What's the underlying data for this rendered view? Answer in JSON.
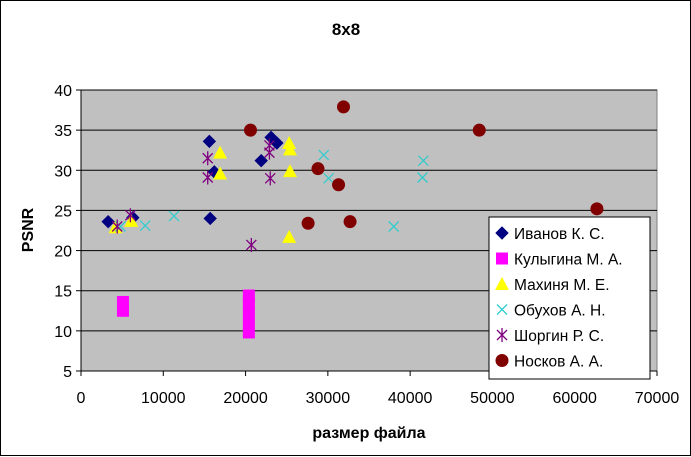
{
  "chart_data": {
    "type": "scatter",
    "title": "8x8",
    "xlabel": "размер файла",
    "ylabel": "PSNR",
    "xlim": [
      0,
      70000
    ],
    "ylim": [
      5,
      40
    ],
    "x_ticks": [
      0,
      10000,
      20000,
      30000,
      40000,
      50000,
      60000,
      70000
    ],
    "y_ticks": [
      5,
      10,
      15,
      20,
      25,
      30,
      35,
      40
    ],
    "x_tick_labels": [
      "0",
      "10000",
      "20000",
      "30000",
      "40000",
      "50000",
      "60000",
      "70000"
    ],
    "y_tick_labels": [
      "5",
      "10",
      "15",
      "20",
      "25",
      "30",
      "35",
      "40"
    ],
    "grid": "horizontal",
    "plot_background": "#c0c0c0",
    "legend_position": "right",
    "series": [
      {
        "name": "Иванов К. С.",
        "marker": "diamond",
        "color": "#000080",
        "points": [
          [
            3300,
            23.6
          ],
          [
            6300,
            24.1
          ],
          [
            15600,
            33.6
          ],
          [
            15700,
            24.0
          ],
          [
            16200,
            29.8
          ],
          [
            21900,
            31.2
          ],
          [
            23100,
            34.1
          ],
          [
            23800,
            33.4
          ]
        ]
      },
      {
        "name": "Кулыгина М. А.",
        "marker": "square",
        "color": "#ff00ff",
        "points": [
          [
            5100,
            12.5
          ],
          [
            5100,
            13.6
          ],
          [
            20400,
            9.8
          ],
          [
            20400,
            11.0
          ],
          [
            20400,
            12.3
          ],
          [
            20400,
            13.5
          ],
          [
            20400,
            14.4
          ]
        ]
      },
      {
        "name": "Махиня М. Е.",
        "marker": "triangle",
        "color": "#ffff00",
        "points": [
          [
            4200,
            22.9
          ],
          [
            6100,
            23.7
          ],
          [
            16900,
            32.2
          ],
          [
            16900,
            29.6
          ],
          [
            25300,
            33.4
          ],
          [
            25400,
            32.6
          ],
          [
            25400,
            29.9
          ],
          [
            25300,
            21.7
          ]
        ]
      },
      {
        "name": "Обухов А. Н.",
        "marker": "x",
        "color": "#33cccc",
        "points": [
          [
            4800,
            23.0
          ],
          [
            7800,
            23.1
          ],
          [
            11300,
            24.3
          ],
          [
            29500,
            31.9
          ],
          [
            30100,
            29.0
          ],
          [
            38000,
            23.0
          ],
          [
            41500,
            29.1
          ],
          [
            41600,
            31.2
          ]
        ]
      },
      {
        "name": "Шоргин Р. С.",
        "marker": "star",
        "color": "#800080",
        "points": [
          [
            4400,
            23.0
          ],
          [
            6000,
            24.4
          ],
          [
            15400,
            31.5
          ],
          [
            15400,
            29.1
          ],
          [
            20700,
            20.7
          ],
          [
            22900,
            32.2
          ],
          [
            22900,
            33.1
          ],
          [
            23000,
            29.0
          ]
        ]
      },
      {
        "name": "Носков А. А.",
        "marker": "circle",
        "color": "#800000",
        "points": [
          [
            20600,
            35.0
          ],
          [
            27600,
            23.4
          ],
          [
            28800,
            30.2
          ],
          [
            31300,
            28.2
          ],
          [
            31900,
            37.9
          ],
          [
            32700,
            23.6
          ],
          [
            48400,
            35.0
          ],
          [
            62700,
            25.2
          ]
        ]
      }
    ]
  }
}
